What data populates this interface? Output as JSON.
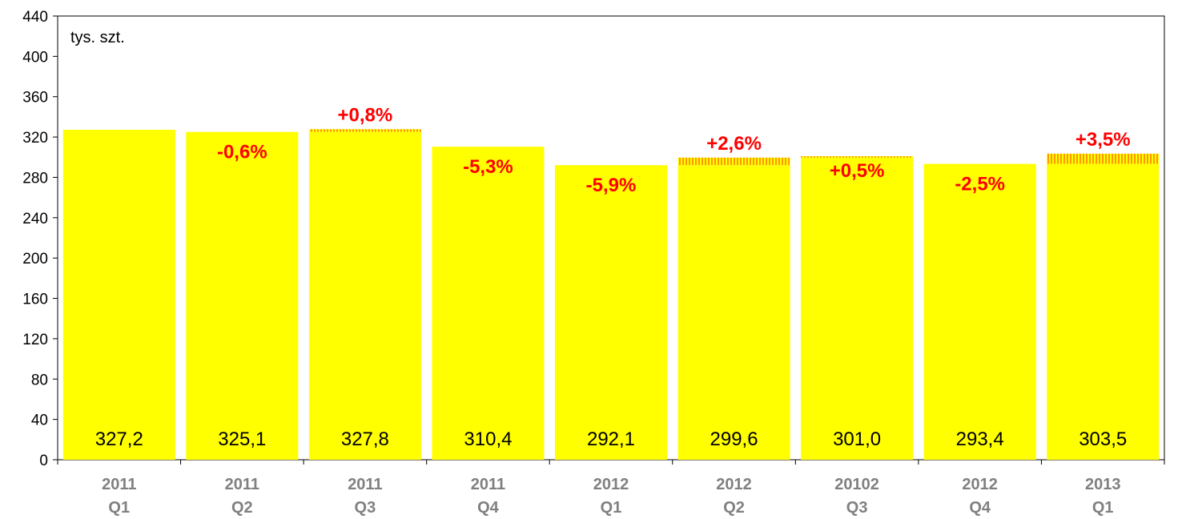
{
  "chart_data": {
    "type": "bar",
    "unit_label": "tys. szt.",
    "y_ticks": [
      "0",
      "40",
      "80",
      "120",
      "160",
      "200",
      "240",
      "280",
      "320",
      "360",
      "400",
      "440"
    ],
    "ylim": [
      0,
      440
    ],
    "categories": [
      [
        "2011",
        "Q1"
      ],
      [
        "2011",
        "Q2"
      ],
      [
        "2011",
        "Q3"
      ],
      [
        "2011",
        "Q4"
      ],
      [
        "2012",
        "Q1"
      ],
      [
        "2012",
        "Q2"
      ],
      [
        "20102",
        "Q3"
      ],
      [
        "2012",
        "Q4"
      ],
      [
        "2013",
        "Q1"
      ]
    ],
    "values": [
      327.2,
      325.1,
      327.8,
      310.4,
      292.1,
      299.6,
      301.0,
      293.4,
      303.5
    ],
    "value_labels": [
      "327,2",
      "325,1",
      "327,8",
      "310,4",
      "292,1",
      "299,6",
      "301,0",
      "293,4",
      "303,5"
    ],
    "changes": [
      "",
      "-0,6%",
      "+0,8%",
      "-5,3%",
      "-5,9%",
      "+2,6%",
      "+0,5%",
      "-2,5%",
      "+3,5%"
    ],
    "grid": false,
    "colors": {
      "bar": "#ffff00",
      "increase": "#ff9900",
      "change_text": "#ff0000",
      "category_text": "#808080"
    }
  }
}
